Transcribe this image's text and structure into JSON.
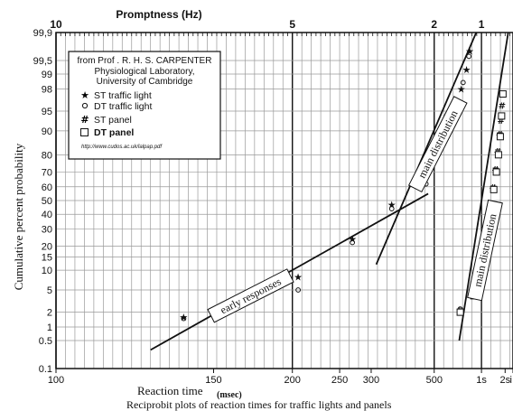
{
  "chart_data": {
    "type": "scatter",
    "title": "",
    "subtitle": "",
    "top_axis_label": "Promptness (Hz)",
    "top_ticks": [
      {
        "hz": 10,
        "label": "10"
      },
      {
        "hz": 5,
        "label": "5"
      },
      {
        "hz": 2,
        "label": "2"
      },
      {
        "hz": 1,
        "label": "1"
      }
    ],
    "xlabel": "Reaction time",
    "xlabel_unit": "(msec)",
    "ylabel": "Cumulative percent probability",
    "caption": "Reciprobit plots of reaction times for traffic lights and panels",
    "x_scale": "reciprocal",
    "y_scale": "probit",
    "xlim": [
      100,
      3000
    ],
    "ylim": [
      0.1,
      99.9
    ],
    "x_ticks": [
      {
        "ms": 100,
        "label": "100"
      },
      {
        "ms": 150,
        "label": "150"
      },
      {
        "ms": 200,
        "label": "200"
      },
      {
        "ms": 250,
        "label": "250"
      },
      {
        "ms": 300,
        "label": "300"
      },
      {
        "ms": 500,
        "label": "500"
      },
      {
        "ms": 1000,
        "label": "1s"
      },
      {
        "ms": 2000,
        "label": "2s"
      },
      {
        "ms": 3000,
        "label": "i"
      }
    ],
    "y_ticks": [
      {
        "p": 99.9,
        "label": "99,9"
      },
      {
        "p": 99.5,
        "label": "99,5"
      },
      {
        "p": 99,
        "label": "99"
      },
      {
        "p": 98,
        "label": "98"
      },
      {
        "p": 95,
        "label": "95"
      },
      {
        "p": 90,
        "label": "90"
      },
      {
        "p": 80,
        "label": "80"
      },
      {
        "p": 70,
        "label": "70"
      },
      {
        "p": 60,
        "label": "60"
      },
      {
        "p": 50,
        "label": "50"
      },
      {
        "p": 40,
        "label": "40"
      },
      {
        "p": 30,
        "label": "30"
      },
      {
        "p": 20,
        "label": "20"
      },
      {
        "p": 15,
        "label": "15"
      },
      {
        "p": 10,
        "label": "10"
      },
      {
        "p": 5,
        "label": "5"
      },
      {
        "p": 2,
        "label": "2"
      },
      {
        "p": 1,
        "label": "1"
      },
      {
        "p": 0.5,
        "label": "0.5"
      },
      {
        "p": 0.1,
        "label": "0.1"
      }
    ],
    "grid": true,
    "legend": {
      "placement": "top-left",
      "source_lines": [
        "from Prof . R. H. S. CARPENTER",
        "Physiological Laboratory,",
        "University of Cambridge"
      ],
      "url": "http://www.cudos.ac.uk/lalpap.pdf",
      "entries": [
        {
          "marker": "star",
          "label": "ST traffic light"
        },
        {
          "marker": "circle",
          "label": "DT traffic light"
        },
        {
          "marker": "hash",
          "label": "ST panel"
        },
        {
          "marker": "square",
          "label": "DT panel"
        }
      ]
    },
    "series": [
      {
        "name": "ST traffic light",
        "marker": "star",
        "points": [
          {
            "x": 137,
            "y": 1.6
          },
          {
            "x": 205,
            "y": 8
          },
          {
            "x": 268,
            "y": 24
          },
          {
            "x": 345,
            "y": 47
          },
          {
            "x": 460,
            "y": 67
          },
          {
            "x": 500,
            "y": 84
          },
          {
            "x": 570,
            "y": 91
          },
          {
            "x": 630,
            "y": 95
          },
          {
            "x": 700,
            "y": 98
          },
          {
            "x": 760,
            "y": 99.2
          },
          {
            "x": 800,
            "y": 99.7
          }
        ]
      },
      {
        "name": "DT traffic light",
        "marker": "circle",
        "points": [
          {
            "x": 137,
            "y": 1.5
          },
          {
            "x": 205,
            "y": 5
          },
          {
            "x": 268,
            "y": 22
          },
          {
            "x": 345,
            "y": 44
          },
          {
            "x": 460,
            "y": 62
          },
          {
            "x": 500,
            "y": 80
          },
          {
            "x": 570,
            "y": 90
          },
          {
            "x": 640,
            "y": 96
          },
          {
            "x": 720,
            "y": 98.5
          },
          {
            "x": 790,
            "y": 99.6
          },
          {
            "x": 690,
            "y": 2.3
          }
        ]
      },
      {
        "name": "ST panel",
        "marker": "hash",
        "points": [
          {
            "x": 690,
            "y": 2.2
          },
          {
            "x": 880,
            "y": 5
          },
          {
            "x": 960,
            "y": 11
          },
          {
            "x": 1000,
            "y": 20
          },
          {
            "x": 1100,
            "y": 32
          },
          {
            "x": 1200,
            "y": 45
          },
          {
            "x": 1320,
            "y": 60
          },
          {
            "x": 1420,
            "y": 72
          },
          {
            "x": 1520,
            "y": 82
          },
          {
            "x": 1620,
            "y": 89
          },
          {
            "x": 1700,
            "y": 93
          },
          {
            "x": 1770,
            "y": 96
          }
        ]
      },
      {
        "name": "DT panel",
        "marker": "square",
        "points": [
          {
            "x": 690,
            "y": 2
          },
          {
            "x": 860,
            "y": 4
          },
          {
            "x": 940,
            "y": 10
          },
          {
            "x": 1050,
            "y": 18
          },
          {
            "x": 1120,
            "y": 30
          },
          {
            "x": 1230,
            "y": 43
          },
          {
            "x": 1350,
            "y": 58
          },
          {
            "x": 1460,
            "y": 70
          },
          {
            "x": 1560,
            "y": 80
          },
          {
            "x": 1660,
            "y": 88
          },
          {
            "x": 1740,
            "y": 94
          },
          {
            "x": 1830,
            "y": 97.5
          }
        ]
      }
    ],
    "fit_lines": [
      {
        "name": "early responses",
        "from": {
          "x": 125,
          "y": 0.3
        },
        "to": {
          "x": 470,
          "y": 55
        }
      },
      {
        "name": "main distribution",
        "from": {
          "x": 310,
          "y": 12
        },
        "to": {
          "x": 900,
          "y": 99.9
        }
      },
      {
        "name": "main distribution",
        "from": {
          "x": 680,
          "y": 0.5
        },
        "to": {
          "x": 2300,
          "y": 99.9
        }
      }
    ],
    "annotations": [
      {
        "text": "early responses",
        "at": {
          "x": 170,
          "y": 4
        },
        "angle": -27
      },
      {
        "text": "main distribution",
        "at": {
          "x": 520,
          "y": 85
        },
        "angle": -63
      },
      {
        "text": "main distribution",
        "at": {
          "x": 1080,
          "y": 18
        },
        "angle": -78
      }
    ]
  }
}
